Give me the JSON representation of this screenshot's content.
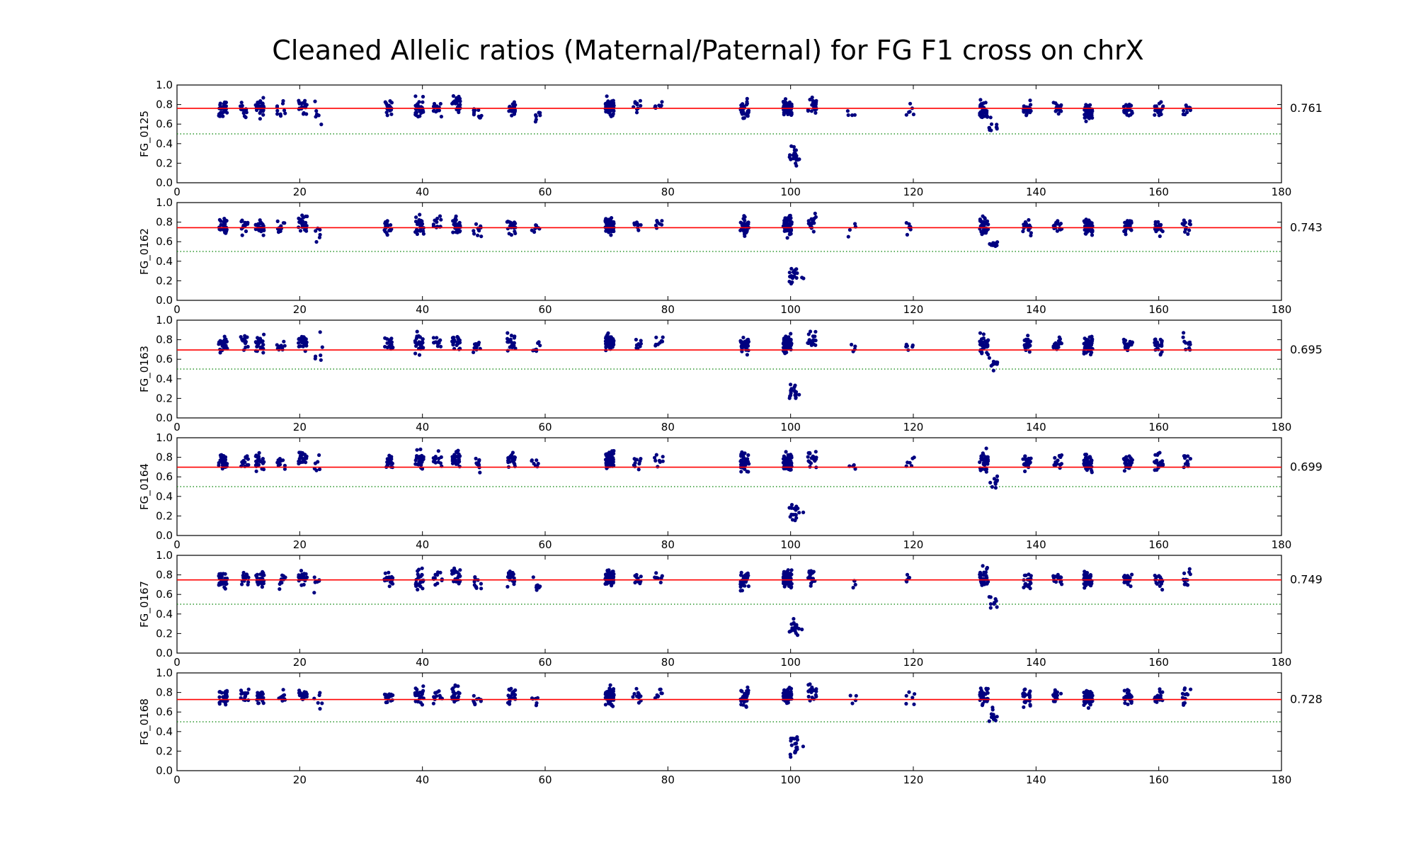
{
  "chart_data": {
    "type": "scatter",
    "title": "Cleaned Allelic ratios (Maternal/Paternal) for FG F1 cross on chrX",
    "xlim": [
      0,
      180
    ],
    "ylim": [
      0.0,
      1.0
    ],
    "xticks": [
      "0",
      "20",
      "40",
      "60",
      "80",
      "100",
      "120",
      "140",
      "160",
      "180"
    ],
    "yticks": [
      "0.0",
      "0.2",
      "0.4",
      "0.6",
      "0.8",
      "1.0"
    ],
    "reference_line": 0.5,
    "colors": {
      "points": "#000080",
      "mean_line": "#ff0000",
      "reference_line": "#008000"
    },
    "panels": [
      {
        "name": "FG_0125",
        "mean": 0.761,
        "mean_label": "0.761"
      },
      {
        "name": "FG_0162",
        "mean": 0.743,
        "mean_label": "0.743"
      },
      {
        "name": "FG_0163",
        "mean": 0.695,
        "mean_label": "0.695"
      },
      {
        "name": "FG_0164",
        "mean": 0.699,
        "mean_label": "0.699"
      },
      {
        "name": "FG_0167",
        "mean": 0.749,
        "mean_label": "0.749"
      },
      {
        "name": "FG_0168",
        "mean": 0.728,
        "mean_label": "0.728"
      }
    ],
    "point_clusters": [
      {
        "x": 7.5,
        "count": 30,
        "y_mean": 0.75,
        "spread": 0.06
      },
      {
        "x": 11,
        "count": 14,
        "y_mean": 0.76,
        "spread": 0.05
      },
      {
        "x": 13.5,
        "count": 28,
        "y_mean": 0.76,
        "spread": 0.06
      },
      {
        "x": 17,
        "count": 10,
        "y_mean": 0.74,
        "spread": 0.05
      },
      {
        "x": 20.5,
        "count": 24,
        "y_mean": 0.78,
        "spread": 0.05
      },
      {
        "x": 23,
        "count": 6,
        "y_mean": 0.7,
        "spread": 0.1
      },
      {
        "x": 34.5,
        "count": 20,
        "y_mean": 0.76,
        "spread": 0.05
      },
      {
        "x": 39.5,
        "count": 26,
        "y_mean": 0.76,
        "spread": 0.07
      },
      {
        "x": 42.5,
        "count": 12,
        "y_mean": 0.77,
        "spread": 0.05
      },
      {
        "x": 45.5,
        "count": 24,
        "y_mean": 0.79,
        "spread": 0.06
      },
      {
        "x": 49,
        "count": 10,
        "y_mean": 0.72,
        "spread": 0.05
      },
      {
        "x": 54.5,
        "count": 22,
        "y_mean": 0.77,
        "spread": 0.06
      },
      {
        "x": 58.5,
        "count": 7,
        "y_mean": 0.72,
        "spread": 0.06
      },
      {
        "x": 70.5,
        "count": 70,
        "y_mean": 0.77,
        "spread": 0.06
      },
      {
        "x": 75,
        "count": 10,
        "y_mean": 0.75,
        "spread": 0.05
      },
      {
        "x": 78.5,
        "count": 8,
        "y_mean": 0.78,
        "spread": 0.04
      },
      {
        "x": 92.5,
        "count": 35,
        "y_mean": 0.75,
        "spread": 0.07
      },
      {
        "x": 99.5,
        "count": 70,
        "y_mean": 0.76,
        "spread": 0.06
      },
      {
        "x": 103.5,
        "count": 20,
        "y_mean": 0.79,
        "spread": 0.06
      },
      {
        "x": 110,
        "count": 4,
        "y_mean": 0.72,
        "spread": 0.05
      },
      {
        "x": 119.5,
        "count": 6,
        "y_mean": 0.74,
        "spread": 0.05
      },
      {
        "x": 131.5,
        "count": 35,
        "y_mean": 0.76,
        "spread": 0.07
      },
      {
        "x": 133,
        "count": 10,
        "y_mean": 0.55,
        "spread": 0.06
      },
      {
        "x": 138.5,
        "count": 22,
        "y_mean": 0.75,
        "spread": 0.06
      },
      {
        "x": 143.5,
        "count": 16,
        "y_mean": 0.76,
        "spread": 0.05
      },
      {
        "x": 148.5,
        "count": 55,
        "y_mean": 0.74,
        "spread": 0.06
      },
      {
        "x": 155,
        "count": 24,
        "y_mean": 0.75,
        "spread": 0.05
      },
      {
        "x": 160,
        "count": 20,
        "y_mean": 0.74,
        "spread": 0.06
      },
      {
        "x": 164.5,
        "count": 12,
        "y_mean": 0.76,
        "spread": 0.06
      },
      {
        "x": 100.5,
        "count": 18,
        "y_mean": 0.26,
        "spread": 0.07
      },
      {
        "x": 101.5,
        "count": 2,
        "y_mean": 0.24,
        "spread": 0.01
      }
    ]
  }
}
